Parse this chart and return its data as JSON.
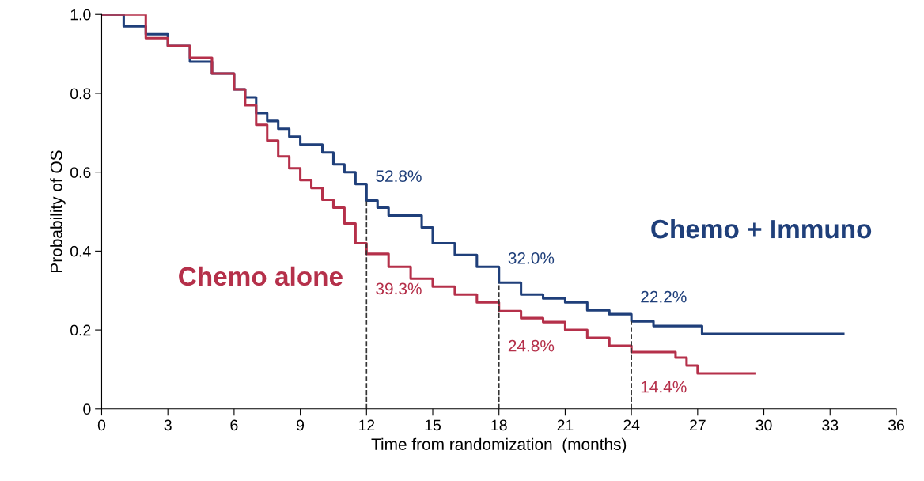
{
  "chart_data": {
    "type": "step",
    "xlabel": "Time from randomization  (months)",
    "ylabel": "Probability of OS",
    "xlim": [
      0,
      36
    ],
    "xticks": [
      0,
      3,
      6,
      9,
      12,
      15,
      18,
      21,
      24,
      27,
      30,
      33,
      36
    ],
    "ylim": [
      0,
      1.0
    ],
    "yticks": [
      {
        "value": 0,
        "label": "0"
      },
      0.2,
      0.4,
      0.6,
      0.8,
      {
        "value": 1.0,
        "label": "1.0"
      }
    ],
    "grid": false,
    "legend": false,
    "marker": "none",
    "line_style": "solid",
    "series": [
      {
        "name": "Chemo + Immuno",
        "color": "#1f3f7a",
        "x": [
          0,
          1,
          2,
          3,
          4,
          5,
          6,
          6.5,
          7,
          7.5,
          8,
          8.5,
          9,
          10,
          10.5,
          11,
          11.5,
          12,
          12.5,
          13,
          14,
          14.5,
          15,
          16,
          17,
          18,
          19,
          20,
          21,
          22,
          23,
          24,
          25,
          27,
          27.2,
          33.6
        ],
        "values": [
          1.0,
          0.97,
          0.95,
          0.92,
          0.88,
          0.85,
          0.81,
          0.79,
          0.75,
          0.73,
          0.71,
          0.69,
          0.67,
          0.65,
          0.62,
          0.6,
          0.57,
          0.528,
          0.51,
          0.49,
          0.49,
          0.46,
          0.42,
          0.39,
          0.36,
          0.32,
          0.29,
          0.28,
          0.27,
          0.25,
          0.24,
          0.222,
          0.21,
          0.21,
          0.19,
          0.19
        ]
      },
      {
        "name": "Chemo alone",
        "color": "#b5304a",
        "x": [
          0,
          2,
          3,
          4,
          5,
          6,
          6.5,
          7,
          7.5,
          8,
          8.5,
          9,
          9.5,
          10,
          10.5,
          11,
          11.5,
          12,
          13,
          14,
          15,
          16,
          17,
          18,
          19,
          20,
          21,
          22,
          23,
          24,
          25,
          26,
          26.5,
          27,
          29.6
        ],
        "values": [
          1.0,
          0.94,
          0.92,
          0.89,
          0.85,
          0.81,
          0.77,
          0.72,
          0.68,
          0.64,
          0.61,
          0.58,
          0.56,
          0.53,
          0.51,
          0.47,
          0.42,
          0.393,
          0.36,
          0.33,
          0.31,
          0.29,
          0.27,
          0.248,
          0.23,
          0.22,
          0.2,
          0.18,
          0.16,
          0.144,
          0.144,
          0.13,
          0.11,
          0.09,
          0.09
        ]
      }
    ],
    "ref_lines": [
      {
        "axis": "x",
        "value": 12,
        "line_style": "dashed",
        "color": "#333333"
      },
      {
        "axis": "x",
        "value": 18,
        "line_style": "dashed",
        "color": "#333333"
      },
      {
        "axis": "x",
        "value": 24,
        "line_style": "dashed",
        "color": "#333333"
      }
    ],
    "annotations": [
      {
        "text": "52.8%",
        "x": 12,
        "y": 0.528
      },
      {
        "text": "39.3%",
        "x": 12,
        "y": 0.393
      },
      {
        "text": "32.0%",
        "x": 18,
        "y": 0.32
      },
      {
        "text": "24.8%",
        "x": 18,
        "y": 0.248
      },
      {
        "text": "22.2%",
        "x": 24,
        "y": 0.222
      },
      {
        "text": "14.4%",
        "x": 24,
        "y": 0.144
      }
    ]
  }
}
